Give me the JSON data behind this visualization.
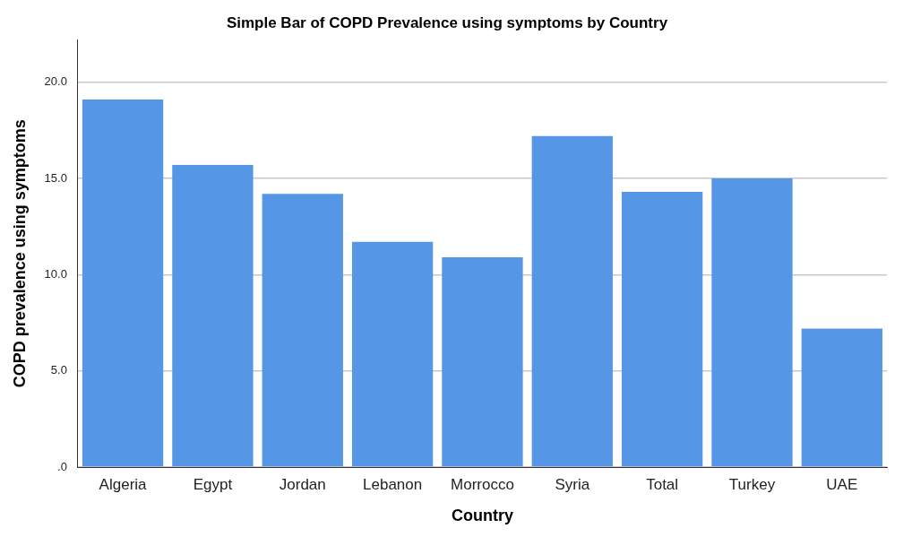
{
  "chart_data": {
    "type": "bar",
    "title": "Simple Bar of COPD Prevalence using symptoms by Country",
    "xlabel": "Country",
    "ylabel": "COPD prevalence using symptoms",
    "categories": [
      "Algeria",
      "Egypt",
      "Jordan",
      "Lebanon",
      "Morrocco",
      "Syria",
      "Total",
      "Turkey",
      "UAE"
    ],
    "values": [
      19.1,
      15.7,
      14.2,
      11.7,
      10.9,
      17.2,
      14.3,
      15.0,
      7.2
    ],
    "color": "#5596e6",
    "ylim": [
      0,
      22.2
    ],
    "yticks": [
      {
        "value": 0,
        "label": ".0"
      },
      {
        "value": 5,
        "label": "5.0"
      },
      {
        "value": 10,
        "label": "10.0"
      },
      {
        "value": 15,
        "label": "15.0"
      },
      {
        "value": 20,
        "label": "20.0"
      }
    ],
    "grid": "y",
    "legend": false
  }
}
